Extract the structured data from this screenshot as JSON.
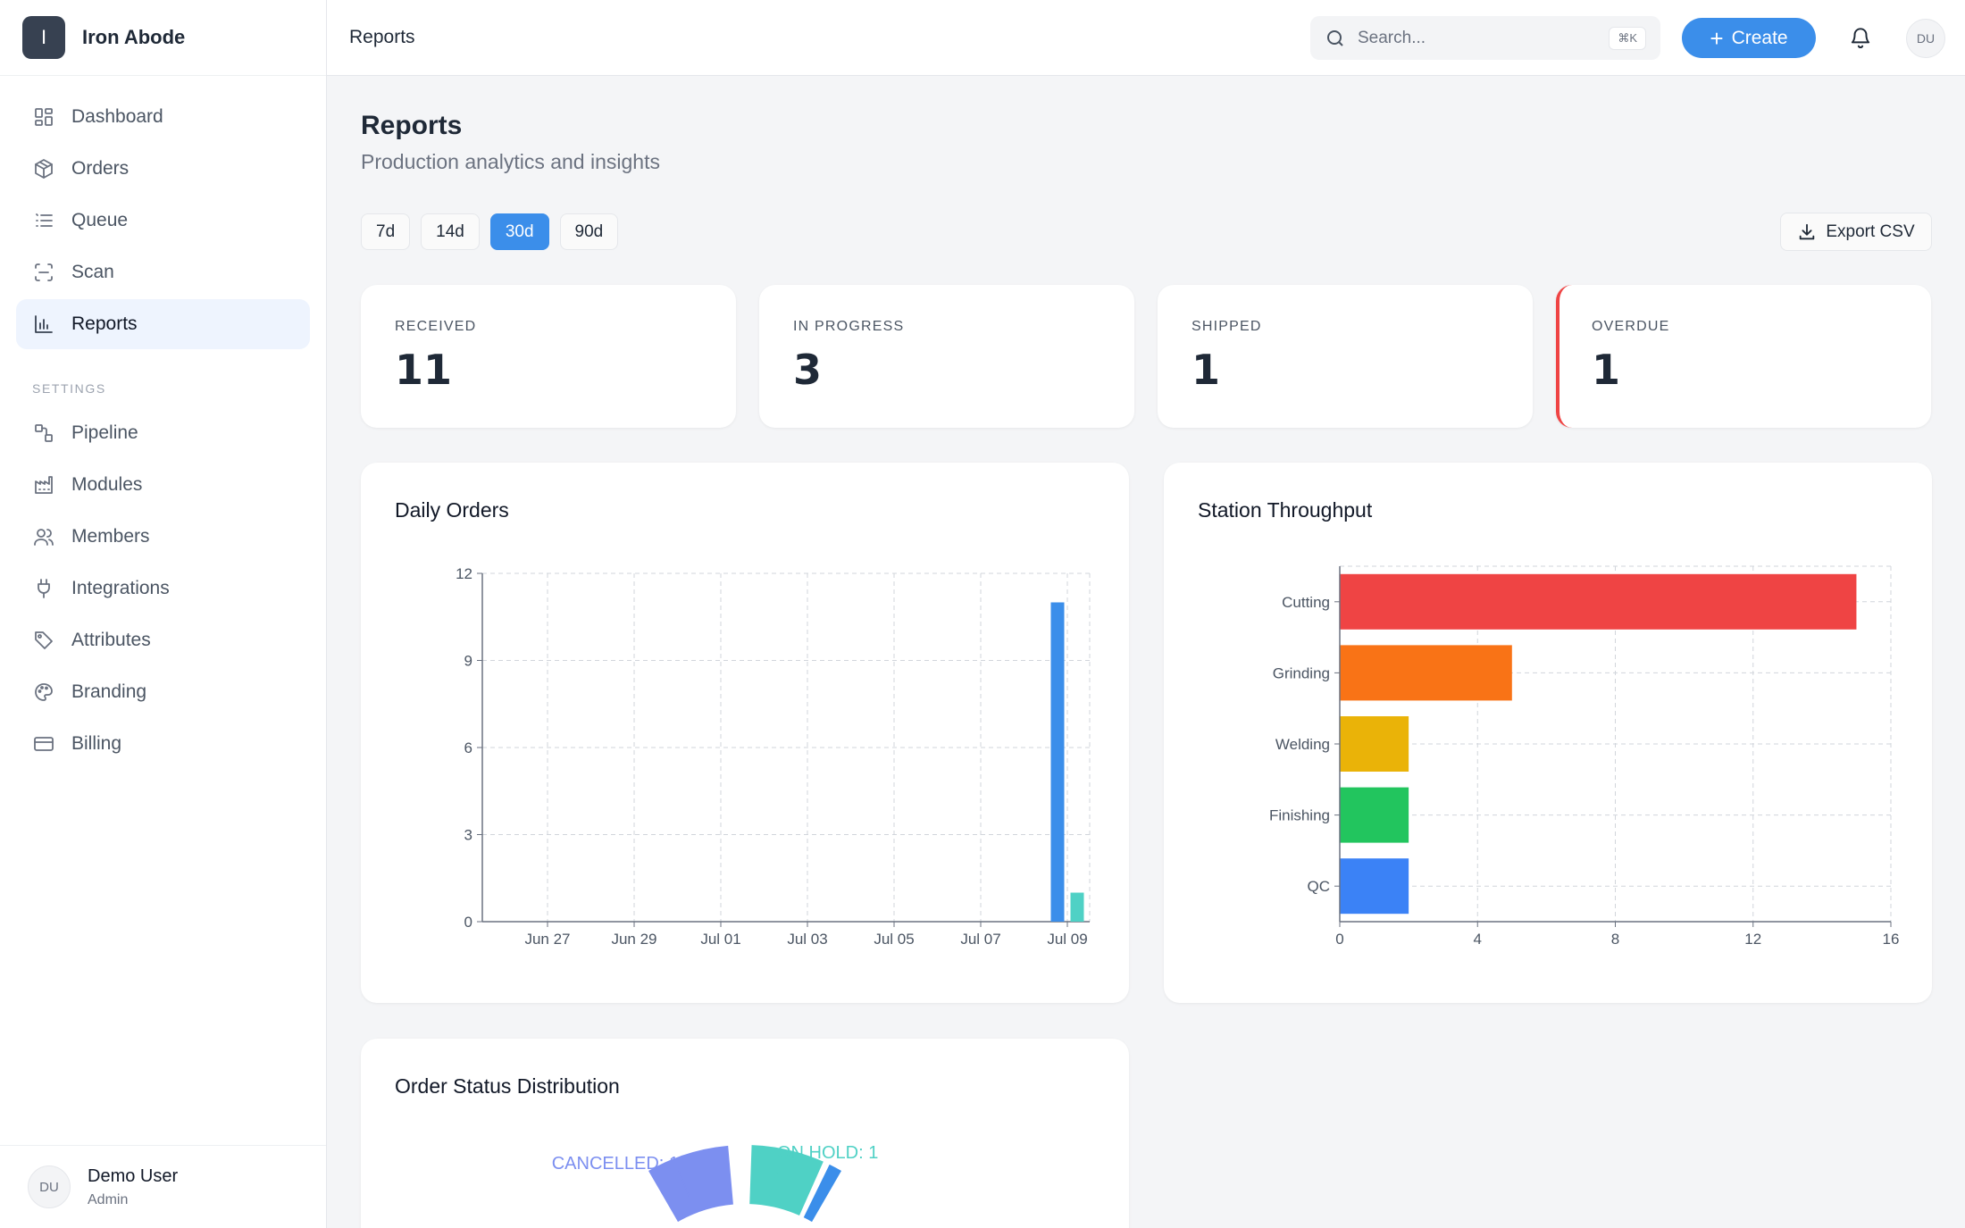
{
  "brand": {
    "logo_letter": "I",
    "name": "Iron Abode"
  },
  "nav": {
    "main": [
      {
        "label": "Dashboard",
        "icon": "dashboard-icon"
      },
      {
        "label": "Orders",
        "icon": "box-icon"
      },
      {
        "label": "Queue",
        "icon": "list-icon"
      },
      {
        "label": "Scan",
        "icon": "scan-icon"
      },
      {
        "label": "Reports",
        "icon": "bar-chart-icon",
        "active": true
      }
    ],
    "settings_label": "SETTINGS",
    "settings": [
      {
        "label": "Pipeline",
        "icon": "pipeline-icon"
      },
      {
        "label": "Modules",
        "icon": "factory-icon"
      },
      {
        "label": "Members",
        "icon": "users-icon"
      },
      {
        "label": "Integrations",
        "icon": "plug-icon"
      },
      {
        "label": "Attributes",
        "icon": "tag-icon"
      },
      {
        "label": "Branding",
        "icon": "palette-icon"
      },
      {
        "label": "Billing",
        "icon": "credit-card-icon"
      }
    ]
  },
  "user": {
    "initials": "DU",
    "name": "Demo User",
    "role": "Admin"
  },
  "topbar": {
    "title": "Reports",
    "search_placeholder": "Search...",
    "shortcut": "⌘K",
    "create_label": "Create",
    "avatar_initials": "DU"
  },
  "page": {
    "title": "Reports",
    "subtitle": "Production analytics and insights",
    "ranges": [
      "7d",
      "14d",
      "30d",
      "90d"
    ],
    "active_range": "30d",
    "export_label": "Export CSV"
  },
  "stats": [
    {
      "label": "RECEIVED",
      "value": "11"
    },
    {
      "label": "IN PROGRESS",
      "value": "3"
    },
    {
      "label": "SHIPPED",
      "value": "1"
    },
    {
      "label": "OVERDUE",
      "value": "1",
      "accent": "#ef4444"
    }
  ],
  "chart_data": [
    {
      "type": "bar",
      "title": "Daily Orders",
      "x_tick_labels": [
        "Jun 27",
        "Jun 29",
        "Jul 01",
        "Jul 03",
        "Jul 05",
        "Jul 07",
        "Jul 09"
      ],
      "ylim": [
        0,
        12
      ],
      "y_ticks": [
        0,
        3,
        6,
        9,
        12
      ],
      "grid": true,
      "series": [
        {
          "color": "#3b8eea",
          "points": [
            {
              "x": "Jul 09",
              "y": 11
            }
          ]
        },
        {
          "color": "#4fd1c5",
          "points": [
            {
              "x": "Jul 09",
              "y": 1
            }
          ]
        }
      ]
    },
    {
      "type": "bar",
      "orientation": "horizontal",
      "title": "Station Throughput",
      "categories": [
        "Cutting",
        "Grinding",
        "Welding",
        "Finishing",
        "QC"
      ],
      "values": [
        15,
        5,
        2,
        2,
        2
      ],
      "colors": [
        "#ef4444",
        "#f97316",
        "#eab308",
        "#22c55e",
        "#3b82f6"
      ],
      "xlim": [
        0,
        16
      ],
      "x_ticks": [
        0,
        4,
        8,
        12,
        16
      ],
      "grid": true
    },
    {
      "type": "pie",
      "title": "Order Status Distribution",
      "slices": [
        {
          "label": "CANCELLED",
          "value": 1,
          "color": "#7c8ff0"
        },
        {
          "label": "ON HOLD",
          "value": 1,
          "color": "#4fd1c5"
        }
      ]
    }
  ]
}
